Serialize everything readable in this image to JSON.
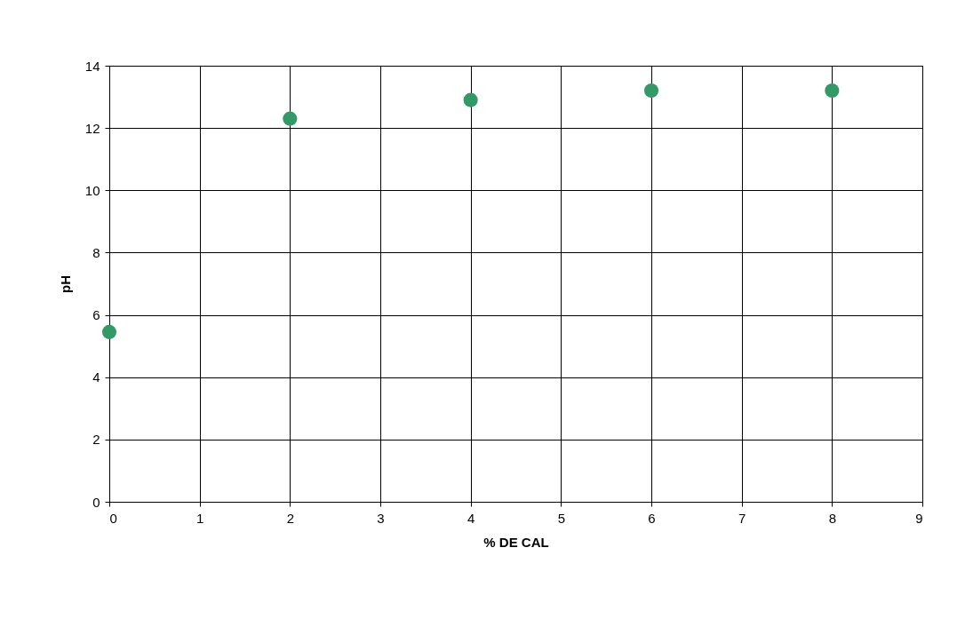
{
  "chart_data": {
    "type": "scatter",
    "xlabel": "% DE CAL",
    "ylabel": "pH",
    "x": [
      0,
      2,
      4,
      6,
      8
    ],
    "series": [
      {
        "color": "#339966",
        "values": [
          5.45,
          12.3,
          12.9,
          13.2,
          13.2
        ]
      }
    ],
    "xlim": [
      0,
      9
    ],
    "xticks": [
      0,
      1,
      2,
      3,
      4,
      5,
      6,
      7,
      8,
      9
    ],
    "ylim": [
      0,
      14
    ],
    "yticks": [
      0,
      2,
      4,
      6,
      8,
      10,
      12,
      14
    ],
    "grid": true,
    "marker": "circle"
  }
}
